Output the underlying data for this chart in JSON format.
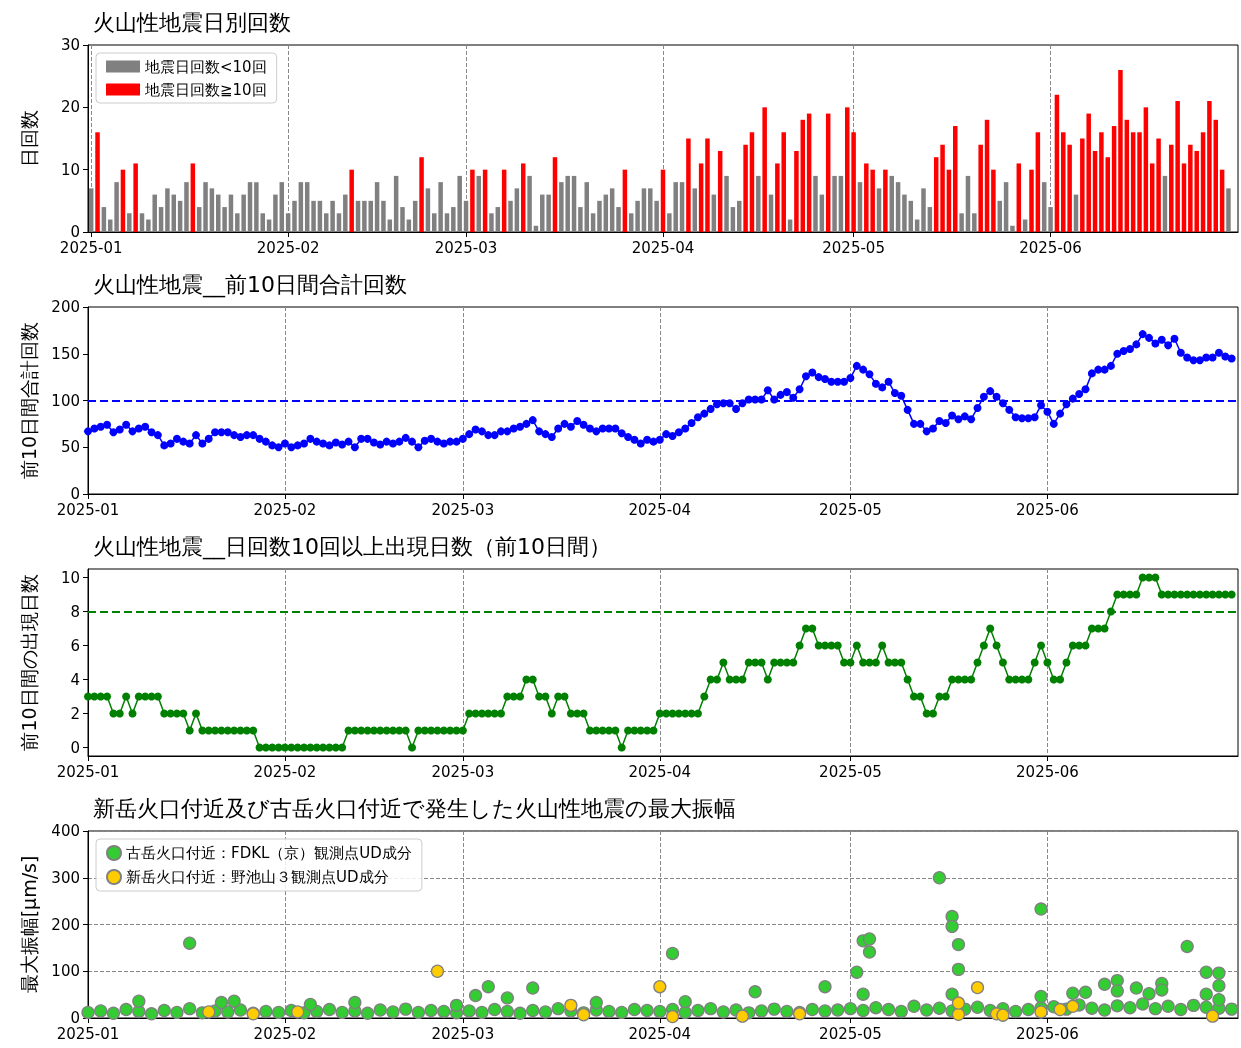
{
  "chart_data": [
    {
      "type": "bar",
      "title": "火山性地震日別回数",
      "ylabel": "日回数",
      "x": [
        "2025-01-01",
        "2025-01-02",
        "2025-01-03",
        "2025-01-04",
        "2025-01-05",
        "2025-01-06",
        "2025-01-07",
        "2025-01-08",
        "2025-01-09",
        "2025-01-10",
        "2025-01-11",
        "2025-01-12",
        "2025-01-13",
        "2025-01-14",
        "2025-01-15",
        "2025-01-16",
        "2025-01-17",
        "2025-01-18",
        "2025-01-19",
        "2025-01-20",
        "2025-01-21",
        "2025-01-22",
        "2025-01-23",
        "2025-01-24",
        "2025-01-25",
        "2025-01-26",
        "2025-01-27",
        "2025-01-28",
        "2025-01-29",
        "2025-01-30",
        "2025-01-31",
        "2025-02-01",
        "2025-02-02",
        "2025-02-03",
        "2025-02-04",
        "2025-02-05",
        "2025-02-06",
        "2025-02-07",
        "2025-02-08",
        "2025-02-09",
        "2025-02-10",
        "2025-02-11",
        "2025-02-12",
        "2025-02-13",
        "2025-02-14",
        "2025-02-15",
        "2025-02-16",
        "2025-02-17",
        "2025-02-18",
        "2025-02-19",
        "2025-02-20",
        "2025-02-21",
        "2025-02-22",
        "2025-02-23",
        "2025-02-24",
        "2025-02-25",
        "2025-02-26",
        "2025-02-27",
        "2025-02-28",
        "2025-03-01",
        "2025-03-02",
        "2025-03-03",
        "2025-03-04",
        "2025-03-05",
        "2025-03-06",
        "2025-03-07",
        "2025-03-08",
        "2025-03-09",
        "2025-03-10",
        "2025-03-11",
        "2025-03-12",
        "2025-03-13",
        "2025-03-14",
        "2025-03-15",
        "2025-03-16",
        "2025-03-17",
        "2025-03-18",
        "2025-03-19",
        "2025-03-20",
        "2025-03-21",
        "2025-03-22",
        "2025-03-23",
        "2025-03-24",
        "2025-03-25",
        "2025-03-26",
        "2025-03-27",
        "2025-03-28",
        "2025-03-29",
        "2025-03-30",
        "2025-03-31",
        "2025-04-01",
        "2025-04-02",
        "2025-04-03",
        "2025-04-04",
        "2025-04-05",
        "2025-04-06",
        "2025-04-07",
        "2025-04-08",
        "2025-04-09",
        "2025-04-10",
        "2025-04-11",
        "2025-04-12",
        "2025-04-13",
        "2025-04-14",
        "2025-04-15",
        "2025-04-16",
        "2025-04-17",
        "2025-04-18",
        "2025-04-19",
        "2025-04-20",
        "2025-04-21",
        "2025-04-22",
        "2025-04-23",
        "2025-04-24",
        "2025-04-25",
        "2025-04-26",
        "2025-04-27",
        "2025-04-28",
        "2025-04-29",
        "2025-04-30",
        "2025-05-01",
        "2025-05-02",
        "2025-05-03",
        "2025-05-04",
        "2025-05-05",
        "2025-05-06",
        "2025-05-07",
        "2025-05-08",
        "2025-05-09",
        "2025-05-10",
        "2025-05-11",
        "2025-05-12",
        "2025-05-13",
        "2025-05-14",
        "2025-05-15",
        "2025-05-16",
        "2025-05-17",
        "2025-05-18",
        "2025-05-19",
        "2025-05-20",
        "2025-05-21",
        "2025-05-22",
        "2025-05-23",
        "2025-05-24",
        "2025-05-25",
        "2025-05-26",
        "2025-05-27",
        "2025-05-28",
        "2025-05-29",
        "2025-05-30",
        "2025-05-31",
        "2025-06-01",
        "2025-06-02",
        "2025-06-03",
        "2025-06-04",
        "2025-06-05",
        "2025-06-06",
        "2025-06-07",
        "2025-06-08",
        "2025-06-09",
        "2025-06-10",
        "2025-06-11",
        "2025-06-12",
        "2025-06-13",
        "2025-06-14",
        "2025-06-15",
        "2025-06-16",
        "2025-06-17",
        "2025-06-18",
        "2025-06-19",
        "2025-06-20",
        "2025-06-21",
        "2025-06-22",
        "2025-06-23",
        "2025-06-24",
        "2025-06-25",
        "2025-06-26",
        "2025-06-27",
        "2025-06-28",
        "2025-06-29"
      ],
      "series": [
        {
          "name": "地震日回数<10回",
          "color": "#808080",
          "values": [
            7,
            null,
            4,
            2,
            8,
            null,
            3,
            null,
            3,
            2,
            6,
            4,
            7,
            6,
            5,
            8,
            null,
            4,
            8,
            7,
            6,
            4,
            6,
            3,
            6,
            8,
            8,
            3,
            2,
            6,
            8,
            3,
            5,
            8,
            8,
            5,
            5,
            3,
            5,
            3,
            6,
            null,
            5,
            5,
            5,
            8,
            5,
            2,
            9,
            4,
            2,
            5,
            null,
            7,
            3,
            8,
            3,
            4,
            9,
            5,
            null,
            9,
            null,
            3,
            4,
            null,
            5,
            7,
            null,
            9,
            1,
            6,
            6,
            null,
            8,
            9,
            9,
            4,
            8,
            3,
            5,
            6,
            7,
            4,
            null,
            3,
            5,
            7,
            7,
            5,
            null,
            3,
            8,
            8,
            null,
            7,
            null,
            null,
            6,
            null,
            9,
            4,
            5,
            null,
            null,
            9,
            null,
            6,
            null,
            null,
            2,
            null,
            null,
            null,
            9,
            6,
            null,
            9,
            9,
            null,
            null,
            8,
            null,
            null,
            7,
            null,
            9,
            8,
            6,
            5,
            2,
            7,
            4,
            null,
            null,
            null,
            null,
            3,
            9,
            3,
            null,
            null,
            null,
            5,
            8,
            1,
            null,
            2,
            null,
            null,
            8,
            4,
            null,
            null,
            null,
            6,
            null,
            null,
            null,
            null,
            null,
            null,
            null,
            null,
            null,
            null,
            null,
            null,
            null,
            9,
            null,
            null,
            null,
            null,
            null,
            null,
            null,
            null,
            null,
            7
          ]
        },
        {
          "name": "地震日回数≧10回",
          "color": "#ff0000",
          "values": [
            null,
            16,
            null,
            null,
            null,
            10,
            null,
            11,
            null,
            null,
            null,
            null,
            null,
            null,
            null,
            null,
            11,
            null,
            null,
            null,
            null,
            null,
            null,
            null,
            null,
            null,
            null,
            null,
            null,
            null,
            null,
            null,
            null,
            null,
            null,
            null,
            null,
            null,
            null,
            null,
            null,
            10,
            null,
            null,
            null,
            null,
            null,
            null,
            null,
            null,
            null,
            null,
            12,
            null,
            null,
            null,
            null,
            null,
            null,
            null,
            10,
            null,
            10,
            null,
            null,
            10,
            null,
            null,
            11,
            null,
            null,
            null,
            null,
            12,
            null,
            null,
            null,
            null,
            null,
            null,
            null,
            null,
            null,
            null,
            10,
            null,
            null,
            null,
            null,
            null,
            10,
            null,
            null,
            null,
            15,
            null,
            11,
            15,
            null,
            13,
            null,
            null,
            null,
            14,
            16,
            null,
            20,
            null,
            11,
            16,
            null,
            13,
            18,
            19,
            null,
            null,
            19,
            null,
            null,
            20,
            16,
            null,
            11,
            10,
            null,
            10,
            null,
            null,
            null,
            null,
            null,
            null,
            null,
            12,
            14,
            10,
            17,
            null,
            null,
            null,
            14,
            18,
            10,
            null,
            null,
            null,
            11,
            null,
            10,
            16,
            null,
            null,
            22,
            16,
            14,
            null,
            15,
            19,
            13,
            16,
            12,
            17,
            26,
            18,
            16,
            16,
            20,
            11,
            15,
            null,
            14,
            21,
            11,
            14,
            13,
            16,
            21,
            18,
            10,
            null
          ]
        }
      ],
      "xlim": [
        "2024-12-31T12:00",
        "2025-06-30T12:00"
      ],
      "xticks": [
        "2025-01",
        "2025-02",
        "2025-03",
        "2025-04",
        "2025-05",
        "2025-06"
      ],
      "ylim": [
        0,
        30
      ],
      "yticks": [
        0,
        10,
        20,
        30
      ],
      "grid": "x",
      "legend": "top left"
    },
    {
      "type": "line",
      "title": "火山性地震__前10日間合計回数",
      "ylabel": "前10日間合計回数",
      "x": [
        "2025-01-01",
        "2025-01-02",
        "2025-01-03",
        "2025-01-04",
        "2025-01-05",
        "2025-01-06",
        "2025-01-07",
        "2025-01-08",
        "2025-01-09",
        "2025-01-10",
        "2025-01-11",
        "2025-01-12",
        "2025-01-13",
        "2025-01-14",
        "2025-01-15",
        "2025-01-16",
        "2025-01-17",
        "2025-01-18",
        "2025-01-19",
        "2025-01-20",
        "2025-01-21",
        "2025-01-22",
        "2025-01-23",
        "2025-01-24",
        "2025-01-25",
        "2025-01-26",
        "2025-01-27",
        "2025-01-28",
        "2025-01-29",
        "2025-01-30",
        "2025-01-31",
        "2025-02-01",
        "2025-02-02",
        "2025-02-03",
        "2025-02-04",
        "2025-02-05",
        "2025-02-06",
        "2025-02-07",
        "2025-02-08",
        "2025-02-09",
        "2025-02-10",
        "2025-02-11",
        "2025-02-12",
        "2025-02-13",
        "2025-02-14",
        "2025-02-15",
        "2025-02-16",
        "2025-02-17",
        "2025-02-18",
        "2025-02-19",
        "2025-02-20",
        "2025-02-21",
        "2025-02-22",
        "2025-02-23",
        "2025-02-24",
        "2025-02-25",
        "2025-02-26",
        "2025-02-27",
        "2025-02-28",
        "2025-03-01",
        "2025-03-02",
        "2025-03-03",
        "2025-03-04",
        "2025-03-05",
        "2025-03-06",
        "2025-03-07",
        "2025-03-08",
        "2025-03-09",
        "2025-03-10",
        "2025-03-11",
        "2025-03-12",
        "2025-03-13",
        "2025-03-14",
        "2025-03-15",
        "2025-03-16",
        "2025-03-17",
        "2025-03-18",
        "2025-03-19",
        "2025-03-20",
        "2025-03-21",
        "2025-03-22",
        "2025-03-23",
        "2025-03-24",
        "2025-03-25",
        "2025-03-26",
        "2025-03-27",
        "2025-03-28",
        "2025-03-29",
        "2025-03-30",
        "2025-03-31",
        "2025-04-01",
        "2025-04-02",
        "2025-04-03",
        "2025-04-04",
        "2025-04-05",
        "2025-04-06",
        "2025-04-07",
        "2025-04-08",
        "2025-04-09",
        "2025-04-10",
        "2025-04-11",
        "2025-04-12",
        "2025-04-13",
        "2025-04-14",
        "2025-04-15",
        "2025-04-16",
        "2025-04-17",
        "2025-04-18",
        "2025-04-19",
        "2025-04-20",
        "2025-04-21",
        "2025-04-22",
        "2025-04-23",
        "2025-04-24",
        "2025-04-25",
        "2025-04-26",
        "2025-04-27",
        "2025-04-28",
        "2025-04-29",
        "2025-04-30",
        "2025-05-01",
        "2025-05-02",
        "2025-05-03",
        "2025-05-04",
        "2025-05-05",
        "2025-05-06",
        "2025-05-07",
        "2025-05-08",
        "2025-05-09",
        "2025-05-10",
        "2025-05-11",
        "2025-05-12",
        "2025-05-13",
        "2025-05-14",
        "2025-05-15",
        "2025-05-16",
        "2025-05-17",
        "2025-05-18",
        "2025-05-19",
        "2025-05-20",
        "2025-05-21",
        "2025-05-22",
        "2025-05-23",
        "2025-05-24",
        "2025-05-25",
        "2025-05-26",
        "2025-05-27",
        "2025-05-28",
        "2025-05-29",
        "2025-05-30",
        "2025-05-31",
        "2025-06-01",
        "2025-06-02",
        "2025-06-03",
        "2025-06-04",
        "2025-06-05",
        "2025-06-06",
        "2025-06-07",
        "2025-06-08",
        "2025-06-09",
        "2025-06-10",
        "2025-06-11",
        "2025-06-12",
        "2025-06-13",
        "2025-06-14",
        "2025-06-15",
        "2025-06-16",
        "2025-06-17",
        "2025-06-18",
        "2025-06-19",
        "2025-06-20",
        "2025-06-21",
        "2025-06-22",
        "2025-06-23",
        "2025-06-24",
        "2025-06-25",
        "2025-06-26",
        "2025-06-27",
        "2025-06-28",
        "2025-06-29",
        "2025-06-30"
      ],
      "series": [
        {
          "color": "#0000ff",
          "values": [
            67,
            70,
            72,
            74,
            66,
            69,
            74,
            67,
            70,
            72,
            66,
            63,
            52,
            54,
            59,
            56,
            54,
            63,
            54,
            59,
            66,
            66,
            66,
            63,
            61,
            63,
            63,
            59,
            56,
            52,
            50,
            54,
            50,
            52,
            54,
            59,
            56,
            54,
            52,
            55,
            53,
            56,
            50,
            59,
            59,
            55,
            53,
            56,
            54,
            56,
            60,
            56,
            50,
            57,
            59,
            56,
            54,
            56,
            56,
            59,
            64,
            69,
            67,
            63,
            63,
            67,
            67,
            70,
            72,
            75,
            79,
            67,
            64,
            61,
            70,
            75,
            72,
            78,
            74,
            70,
            67,
            70,
            70,
            70,
            65,
            61,
            58,
            54,
            58,
            56,
            58,
            64,
            62,
            66,
            70,
            76,
            82,
            86,
            91,
            96,
            97,
            97,
            91,
            97,
            101,
            101,
            101,
            111,
            101,
            106,
            109,
            103,
            112,
            126,
            130,
            125,
            123,
            120,
            120,
            120,
            124,
            137,
            133,
            128,
            118,
            114,
            120,
            108,
            105,
            90,
            75,
            75,
            67,
            70,
            78,
            76,
            84,
            80,
            83,
            80,
            92,
            104,
            110,
            104,
            97,
            90,
            82,
            81,
            81,
            82,
            95,
            88,
            75,
            86,
            96,
            102,
            107,
            112,
            129,
            133,
            133,
            137,
            150,
            153,
            155,
            160,
            171,
            167,
            161,
            165,
            159,
            166,
            151,
            146,
            143,
            143,
            146,
            146,
            151,
            147,
            145
          ]
        }
      ],
      "xlim": [
        "2025-01-01",
        "2025-07-01"
      ],
      "xticks": [
        "2025-01",
        "2025-02",
        "2025-03",
        "2025-04",
        "2025-05",
        "2025-06"
      ],
      "ylim": [
        0,
        200
      ],
      "yticks": [
        0,
        50,
        100,
        150,
        200
      ],
      "grid": "x",
      "marker": "circle",
      "line_style": "solid",
      "ref_lines": [
        {
          "axis": "y",
          "value": 100,
          "color": "#0000ff",
          "line_style": "dashed"
        }
      ]
    },
    {
      "type": "line",
      "title": "火山性地震__日回数10回以上出現日数（前10日間）",
      "ylabel": "前10日間の出現日数",
      "x": [
        "2025-01-01",
        "2025-01-02",
        "2025-01-03",
        "2025-01-04",
        "2025-01-05",
        "2025-01-06",
        "2025-01-07",
        "2025-01-08",
        "2025-01-09",
        "2025-01-10",
        "2025-01-11",
        "2025-01-12",
        "2025-01-13",
        "2025-01-14",
        "2025-01-15",
        "2025-01-16",
        "2025-01-17",
        "2025-01-18",
        "2025-01-19",
        "2025-01-20",
        "2025-01-21",
        "2025-01-22",
        "2025-01-23",
        "2025-01-24",
        "2025-01-25",
        "2025-01-26",
        "2025-01-27",
        "2025-01-28",
        "2025-01-29",
        "2025-01-30",
        "2025-01-31",
        "2025-02-01",
        "2025-02-02",
        "2025-02-03",
        "2025-02-04",
        "2025-02-05",
        "2025-02-06",
        "2025-02-07",
        "2025-02-08",
        "2025-02-09",
        "2025-02-10",
        "2025-02-11",
        "2025-02-12",
        "2025-02-13",
        "2025-02-14",
        "2025-02-15",
        "2025-02-16",
        "2025-02-17",
        "2025-02-18",
        "2025-02-19",
        "2025-02-20",
        "2025-02-21",
        "2025-02-22",
        "2025-02-23",
        "2025-02-24",
        "2025-02-25",
        "2025-02-26",
        "2025-02-27",
        "2025-02-28",
        "2025-03-01",
        "2025-03-02",
        "2025-03-03",
        "2025-03-04",
        "2025-03-05",
        "2025-03-06",
        "2025-03-07",
        "2025-03-08",
        "2025-03-09",
        "2025-03-10",
        "2025-03-11",
        "2025-03-12",
        "2025-03-13",
        "2025-03-14",
        "2025-03-15",
        "2025-03-16",
        "2025-03-17",
        "2025-03-18",
        "2025-03-19",
        "2025-03-20",
        "2025-03-21",
        "2025-03-22",
        "2025-03-23",
        "2025-03-24",
        "2025-03-25",
        "2025-03-26",
        "2025-03-27",
        "2025-03-28",
        "2025-03-29",
        "2025-03-30",
        "2025-03-31",
        "2025-04-01",
        "2025-04-02",
        "2025-04-03",
        "2025-04-04",
        "2025-04-05",
        "2025-04-06",
        "2025-04-07",
        "2025-04-08",
        "2025-04-09",
        "2025-04-10",
        "2025-04-11",
        "2025-04-12",
        "2025-04-13",
        "2025-04-14",
        "2025-04-15",
        "2025-04-16",
        "2025-04-17",
        "2025-04-18",
        "2025-04-19",
        "2025-04-20",
        "2025-04-21",
        "2025-04-22",
        "2025-04-23",
        "2025-04-24",
        "2025-04-25",
        "2025-04-26",
        "2025-04-27",
        "2025-04-28",
        "2025-04-29",
        "2025-04-30",
        "2025-05-01",
        "2025-05-02",
        "2025-05-03",
        "2025-05-04",
        "2025-05-05",
        "2025-05-06",
        "2025-05-07",
        "2025-05-08",
        "2025-05-09",
        "2025-05-10",
        "2025-05-11",
        "2025-05-12",
        "2025-05-13",
        "2025-05-14",
        "2025-05-15",
        "2025-05-16",
        "2025-05-17",
        "2025-05-18",
        "2025-05-19",
        "2025-05-20",
        "2025-05-21",
        "2025-05-22",
        "2025-05-23",
        "2025-05-24",
        "2025-05-25",
        "2025-05-26",
        "2025-05-27",
        "2025-05-28",
        "2025-05-29",
        "2025-05-30",
        "2025-05-31",
        "2025-06-01",
        "2025-06-02",
        "2025-06-03",
        "2025-06-04",
        "2025-06-05",
        "2025-06-06",
        "2025-06-07",
        "2025-06-08",
        "2025-06-09",
        "2025-06-10",
        "2025-06-11",
        "2025-06-12",
        "2025-06-13",
        "2025-06-14",
        "2025-06-15",
        "2025-06-16",
        "2025-06-17",
        "2025-06-18",
        "2025-06-19",
        "2025-06-20",
        "2025-06-21",
        "2025-06-22",
        "2025-06-23",
        "2025-06-24",
        "2025-06-25",
        "2025-06-26",
        "2025-06-27",
        "2025-06-28",
        "2025-06-29",
        "2025-06-30"
      ],
      "series": [
        {
          "color": "#008000",
          "values": [
            3,
            3,
            3,
            3,
            2,
            2,
            3,
            2,
            3,
            3,
            3,
            3,
            2,
            2,
            2,
            2,
            1,
            2,
            1,
            1,
            1,
            1,
            1,
            1,
            1,
            1,
            1,
            0,
            0,
            0,
            0,
            0,
            0,
            0,
            0,
            0,
            0,
            0,
            0,
            0,
            0,
            1,
            1,
            1,
            1,
            1,
            1,
            1,
            1,
            1,
            1,
            0,
            1,
            1,
            1,
            1,
            1,
            1,
            1,
            1,
            2,
            2,
            2,
            2,
            2,
            2,
            3,
            3,
            3,
            4,
            4,
            3,
            3,
            2,
            3,
            3,
            2,
            2,
            2,
            1,
            1,
            1,
            1,
            1,
            0,
            1,
            1,
            1,
            1,
            1,
            2,
            2,
            2,
            2,
            2,
            2,
            2,
            3,
            4,
            4,
            5,
            4,
            4,
            4,
            5,
            5,
            5,
            4,
            5,
            5,
            5,
            5,
            6,
            7,
            7,
            6,
            6,
            6,
            6,
            5,
            5,
            6,
            5,
            5,
            5,
            6,
            5,
            5,
            5,
            4,
            3,
            3,
            2,
            2,
            3,
            3,
            4,
            4,
            4,
            4,
            5,
            6,
            7,
            6,
            5,
            4,
            4,
            4,
            4,
            5,
            6,
            5,
            4,
            4,
            5,
            6,
            6,
            6,
            7,
            7,
            7,
            8,
            9,
            9,
            9,
            9,
            10,
            10,
            10,
            9,
            9,
            9,
            9,
            9,
            9,
            9,
            9,
            9,
            9,
            9,
            9
          ]
        }
      ],
      "xlim": [
        "2025-01-01",
        "2025-07-01"
      ],
      "xticks": [
        "2025-01",
        "2025-02",
        "2025-03",
        "2025-04",
        "2025-05",
        "2025-06"
      ],
      "ylim": [
        -0.5,
        10.5
      ],
      "yticks": [
        0,
        2,
        4,
        6,
        8,
        10
      ],
      "grid": "x",
      "marker": "circle",
      "line_style": "solid",
      "ref_lines": [
        {
          "axis": "y",
          "value": 8,
          "color": "#008000",
          "line_style": "dashed"
        }
      ]
    },
    {
      "type": "scatter",
      "title": "新岳火口付近及び古岳火口付近で発生した火山性地震の最大振幅",
      "ylabel": "最大振幅[μm/s]",
      "series": [
        {
          "name": "古岳火口付近：FDKL（京）観測点UD成分",
          "color": "#33cc33",
          "x": [
            "2025-01-01",
            "2025-01-03",
            "2025-01-05",
            "2025-01-07",
            "2025-01-09",
            "2025-01-11",
            "2025-01-13",
            "2025-01-15",
            "2025-01-17",
            "2025-01-19",
            "2025-01-21",
            "2025-01-23",
            "2025-01-25",
            "2025-01-27",
            "2025-01-29",
            "2025-01-31",
            "2025-02-02",
            "2025-02-04",
            "2025-02-06",
            "2025-02-08",
            "2025-02-10",
            "2025-02-12",
            "2025-02-14",
            "2025-02-16",
            "2025-02-18",
            "2025-02-20",
            "2025-02-22",
            "2025-02-24",
            "2025-02-26",
            "2025-02-28",
            "2025-03-02",
            "2025-03-04",
            "2025-03-06",
            "2025-03-08",
            "2025-03-10",
            "2025-03-12",
            "2025-03-14",
            "2025-03-16",
            "2025-03-18",
            "2025-03-20",
            "2025-03-22",
            "2025-03-24",
            "2025-03-26",
            "2025-03-28",
            "2025-03-30",
            "2025-04-01",
            "2025-04-03",
            "2025-04-05",
            "2025-04-07",
            "2025-04-09",
            "2025-04-11",
            "2025-04-13",
            "2025-04-15",
            "2025-04-17",
            "2025-04-19",
            "2025-04-21",
            "2025-04-23",
            "2025-04-25",
            "2025-04-27",
            "2025-04-29",
            "2025-05-01",
            "2025-05-03",
            "2025-05-05",
            "2025-05-07",
            "2025-05-09",
            "2025-05-11",
            "2025-05-13",
            "2025-05-15",
            "2025-05-17",
            "2025-05-19",
            "2025-05-21",
            "2025-05-23",
            "2025-05-25",
            "2025-05-27",
            "2025-05-29",
            "2025-05-31",
            "2025-06-02",
            "2025-06-04",
            "2025-06-06",
            "2025-06-08",
            "2025-06-10",
            "2025-06-12",
            "2025-06-14",
            "2025-06-16",
            "2025-06-18",
            "2025-06-20",
            "2025-06-22",
            "2025-06-24",
            "2025-06-26",
            "2025-06-28",
            "2025-06-30",
            "2025-01-09",
            "2025-01-17",
            "2025-01-22",
            "2025-01-24",
            "2025-02-05",
            "2025-02-12",
            "2025-02-28",
            "2025-03-03",
            "2025-03-05",
            "2025-03-08",
            "2025-03-12",
            "2025-03-22",
            "2025-04-03",
            "2025-04-05",
            "2025-04-16",
            "2025-04-27",
            "2025-05-02",
            "2025-05-03",
            "2025-05-03",
            "2025-05-04",
            "2025-05-04",
            "2025-05-15",
            "2025-05-17",
            "2025-05-17",
            "2025-05-17",
            "2025-05-18",
            "2025-05-18",
            "2025-05-31",
            "2025-05-31",
            "2025-06-05",
            "2025-06-07",
            "2025-06-10",
            "2025-06-12",
            "2025-06-12",
            "2025-06-15",
            "2025-06-17",
            "2025-06-19",
            "2025-06-19",
            "2025-06-23",
            "2025-06-26",
            "2025-06-26",
            "2025-06-28",
            "2025-06-28",
            "2025-06-28"
          ],
          "values": [
            12,
            15,
            10,
            18,
            14,
            9,
            16,
            12,
            20,
            11,
            15,
            13,
            17,
            10,
            14,
            12,
            16,
            11,
            14,
            18,
            12,
            15,
            10,
            17,
            13,
            19,
            12,
            16,
            14,
            11,
            15,
            12,
            18,
            14,
            10,
            16,
            13,
            20,
            15,
            11,
            17,
            14,
            12,
            18,
            16,
            14,
            18,
            12,
            16,
            20,
            13,
            17,
            11,
            15,
            19,
            14,
            12,
            18,
            15,
            17,
            20,
            16,
            22,
            18,
            14,
            25,
            17,
            21,
            15,
            19,
            23,
            16,
            20,
            14,
            18,
            22,
            24,
            19,
            28,
            21,
            17,
            26,
            22,
            30,
            20,
            25,
            18,
            27,
            23,
            21,
            19,
            36,
            160,
            33,
            36,
            29,
            33,
            27,
            48,
            67,
            43,
            64,
            33,
            138,
            35,
            56,
            67,
            98,
            165,
            51,
            169,
            141,
            300,
            217,
            196,
            51,
            157,
            104,
            233,
            46,
            53,
            55,
            72,
            80,
            58,
            64,
            52,
            74,
            60,
            153,
            98,
            51,
            96,
            69,
            39
          ]
        },
        {
          "name": "新岳火口付近：野池山３観測点UD成分",
          "color": "#ffcc00",
          "x": [
            "2025-01-20",
            "2025-01-27",
            "2025-02-03",
            "2025-02-25",
            "2025-03-18",
            "2025-03-20",
            "2025-04-01",
            "2025-04-03",
            "2025-04-14",
            "2025-04-23",
            "2025-05-18",
            "2025-05-18",
            "2025-05-21",
            "2025-05-24",
            "2025-05-25",
            "2025-05-31",
            "2025-06-03",
            "2025-06-05",
            "2025-06-27"
          ],
          "values": [
            13,
            9,
            13,
            100,
            27,
            7,
            67,
            3,
            4,
            9,
            8,
            32,
            65,
            9,
            6,
            13,
            18,
            25,
            4
          ]
        }
      ],
      "xlim": [
        "2025-01-01",
        "2025-07-01"
      ],
      "xticks": [
        "2025-01",
        "2025-02",
        "2025-03",
        "2025-04",
        "2025-05",
        "2025-06"
      ],
      "ylim": [
        0,
        400
      ],
      "yticks": [
        0,
        100,
        200,
        300,
        400
      ],
      "grid": true,
      "marker": "circle",
      "legend": "top left"
    }
  ]
}
